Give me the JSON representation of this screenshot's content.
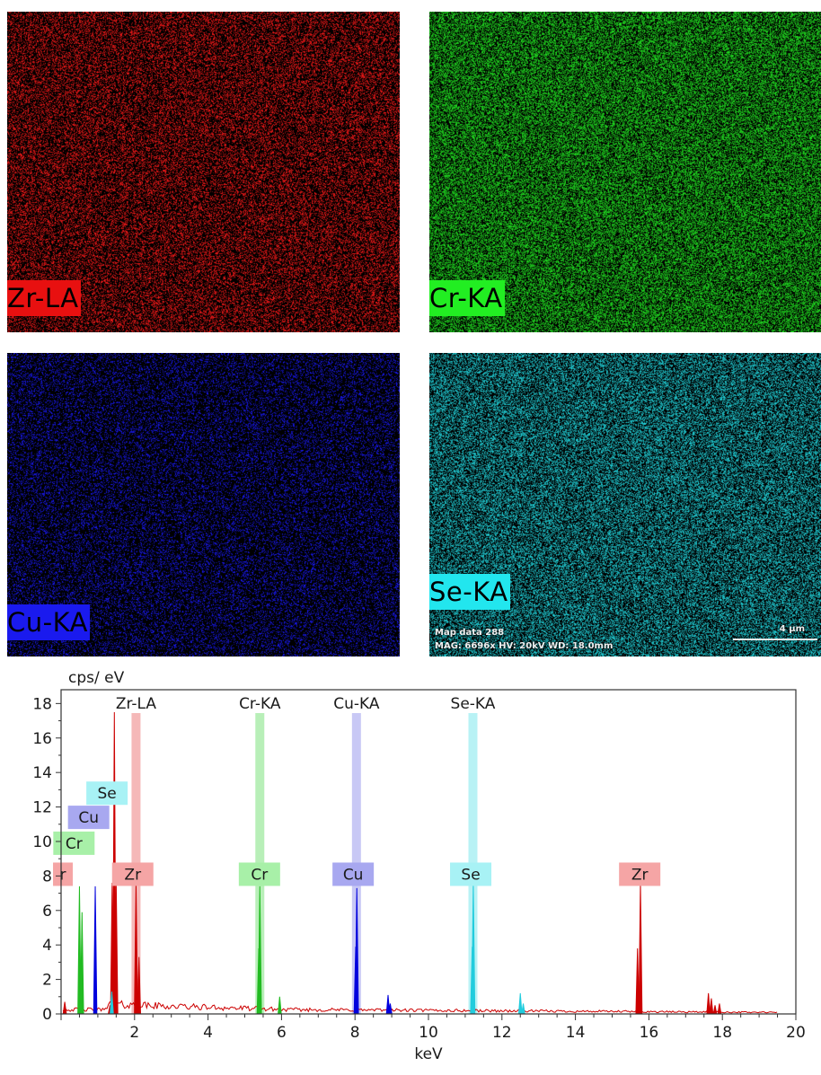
{
  "maps": [
    {
      "label": "Zr-LA",
      "color": "#ff1a1a",
      "label_bg": "#e81010"
    },
    {
      "label": "Cr-KA",
      "color": "#22e622",
      "label_bg": "#22ee22"
    },
    {
      "label": "Cu-KA",
      "color": "#1a1aff",
      "label_bg": "#1a1aee"
    },
    {
      "label": "Se-KA",
      "color": "#22d8e0",
      "label_bg": "#22e6ee"
    }
  ],
  "map_info": {
    "line1": "Map data 288",
    "line2": "MAG: 6696x  HV: 20kV  WD: 18.0mm",
    "scale": "4 µm"
  },
  "chart_data": {
    "type": "line",
    "xlabel": "keV",
    "ylabel": "cps/ eV",
    "xlim": [
      0,
      20
    ],
    "ylim": [
      0,
      18.8
    ],
    "xticks": [
      2,
      4,
      6,
      8,
      10,
      12,
      14,
      16,
      18,
      20
    ],
    "yticks": [
      0,
      2,
      4,
      6,
      8,
      10,
      12,
      14,
      16,
      18
    ],
    "grid": false,
    "colors": {
      "Zr": "#cc0000",
      "Cr": "#22bb22",
      "Cu": "#0000dd",
      "Se": "#22ccdd"
    },
    "line_markers": [
      {
        "label": "Zr-LA",
        "x": 2.04,
        "color": "#f5b8b8"
      },
      {
        "label": "Cr-KA",
        "x": 5.41,
        "color": "#b8efb8"
      },
      {
        "label": "Cu-KA",
        "x": 8.04,
        "color": "#c8c8f5"
      },
      {
        "label": "Se-KA",
        "x": 11.21,
        "color": "#b8f2f5"
      }
    ],
    "peak_labels": [
      {
        "text": "r",
        "element": "Zr",
        "x": 0.05,
        "y": 8.1
      },
      {
        "text": "Cr",
        "element": "Cr",
        "x": 0.35,
        "y": 9.9
      },
      {
        "text": "Cu",
        "element": "Cu",
        "x": 0.75,
        "y": 11.4
      },
      {
        "text": "Se",
        "element": "Se",
        "x": 1.25,
        "y": 12.8
      },
      {
        "text": "Zr",
        "element": "Zr",
        "x": 1.95,
        "y": 8.1
      },
      {
        "text": "Cr",
        "element": "Cr",
        "x": 5.4,
        "y": 8.1
      },
      {
        "text": "Cu",
        "element": "Cu",
        "x": 7.95,
        "y": 8.1
      },
      {
        "text": "Se",
        "element": "Se",
        "x": 11.15,
        "y": 8.1
      },
      {
        "text": "Zr",
        "element": "Zr",
        "x": 15.75,
        "y": 8.1
      }
    ],
    "series": [
      {
        "element": "Zr",
        "peaks": [
          {
            "x": 0.1,
            "y": 0.7
          },
          {
            "x": 1.33,
            "y": 0.5
          },
          {
            "x": 1.39,
            "y": 7.6
          },
          {
            "x": 1.45,
            "y": 17.5
          },
          {
            "x": 1.5,
            "y": 7.6
          },
          {
            "x": 2.04,
            "y": 7.6
          },
          {
            "x": 2.12,
            "y": 3.3
          },
          {
            "x": 15.69,
            "y": 3.8
          },
          {
            "x": 15.77,
            "y": 7.6
          },
          {
            "x": 17.62,
            "y": 1.2
          },
          {
            "x": 17.7,
            "y": 0.9
          },
          {
            "x": 17.8,
            "y": 0.5
          },
          {
            "x": 17.92,
            "y": 0.6
          }
        ]
      },
      {
        "element": "Cr",
        "peaks": [
          {
            "x": 0.5,
            "y": 7.4
          },
          {
            "x": 0.57,
            "y": 5.9
          },
          {
            "x": 5.38,
            "y": 3.8
          },
          {
            "x": 5.41,
            "y": 7.4
          },
          {
            "x": 5.95,
            "y": 1.0
          }
        ]
      },
      {
        "element": "Cu",
        "peaks": [
          {
            "x": 0.93,
            "y": 7.4
          },
          {
            "x": 8.02,
            "y": 3.9
          },
          {
            "x": 8.05,
            "y": 7.3
          },
          {
            "x": 8.9,
            "y": 1.1
          },
          {
            "x": 8.96,
            "y": 0.6
          }
        ]
      },
      {
        "element": "Se",
        "peaks": [
          {
            "x": 1.38,
            "y": 1.3
          },
          {
            "x": 11.19,
            "y": 3.9
          },
          {
            "x": 11.22,
            "y": 7.6
          },
          {
            "x": 12.5,
            "y": 1.2
          },
          {
            "x": 12.58,
            "y": 0.6
          }
        ]
      }
    ]
  }
}
